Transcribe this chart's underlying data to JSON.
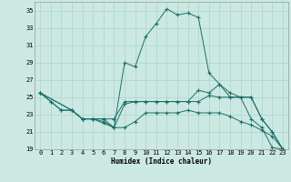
{
  "xlabel": "Humidex (Indice chaleur)",
  "bg_color": "#cce8e2",
  "grid_color": "#aad4cc",
  "line_color": "#1a7068",
  "ylim": [
    19,
    36
  ],
  "xlim": [
    -0.5,
    23.5
  ],
  "yticks": [
    19,
    21,
    23,
    25,
    27,
    29,
    31,
    33,
    35
  ],
  "xticks": [
    0,
    1,
    2,
    3,
    4,
    5,
    6,
    7,
    8,
    9,
    10,
    11,
    12,
    13,
    14,
    15,
    16,
    17,
    18,
    19,
    20,
    21,
    22,
    23
  ],
  "lines": [
    {
      "x": [
        0,
        1,
        2,
        3,
        4,
        5,
        6,
        7,
        8,
        9,
        10,
        11,
        12,
        13,
        14,
        15,
        16,
        17,
        18,
        19,
        20,
        21,
        22,
        23
      ],
      "y": [
        25.5,
        24.5,
        23.5,
        23.5,
        22.5,
        22.5,
        22.5,
        21.5,
        29.0,
        28.5,
        32.0,
        33.5,
        35.2,
        34.5,
        34.7,
        34.2,
        27.8,
        26.5,
        25.0,
        25.0,
        22.5,
        21.5,
        19.2,
        19.0
      ]
    },
    {
      "x": [
        0,
        1,
        2,
        3,
        4,
        5,
        6,
        7,
        8,
        9,
        10,
        11,
        12,
        13,
        14,
        15,
        16,
        17,
        18,
        19,
        20,
        21,
        22,
        23
      ],
      "y": [
        25.5,
        24.5,
        23.5,
        23.5,
        22.5,
        22.5,
        22.5,
        22.5,
        24.5,
        24.5,
        24.5,
        24.5,
        24.5,
        24.5,
        24.5,
        25.8,
        25.5,
        26.5,
        25.5,
        25.0,
        25.0,
        22.5,
        21.0,
        19.0
      ]
    },
    {
      "x": [
        0,
        3,
        4,
        5,
        6,
        7,
        8,
        9,
        10,
        11,
        12,
        13,
        14,
        15,
        16,
        17,
        18,
        19,
        20,
        21,
        22,
        23
      ],
      "y": [
        25.5,
        23.5,
        22.5,
        22.5,
        22.0,
        21.5,
        24.2,
        24.5,
        24.5,
        24.5,
        24.5,
        24.5,
        24.5,
        24.5,
        25.2,
        25.0,
        25.0,
        25.0,
        25.0,
        22.5,
        21.0,
        19.0
      ]
    },
    {
      "x": [
        0,
        3,
        4,
        5,
        6,
        7,
        8,
        9,
        10,
        11,
        12,
        13,
        14,
        15,
        16,
        17,
        18,
        19,
        20,
        21,
        22,
        23
      ],
      "y": [
        25.5,
        23.5,
        22.5,
        22.5,
        22.2,
        21.5,
        21.5,
        22.2,
        23.2,
        23.2,
        23.2,
        23.2,
        23.5,
        23.2,
        23.2,
        23.2,
        22.8,
        22.2,
        21.8,
        21.2,
        20.5,
        19.0
      ]
    }
  ]
}
